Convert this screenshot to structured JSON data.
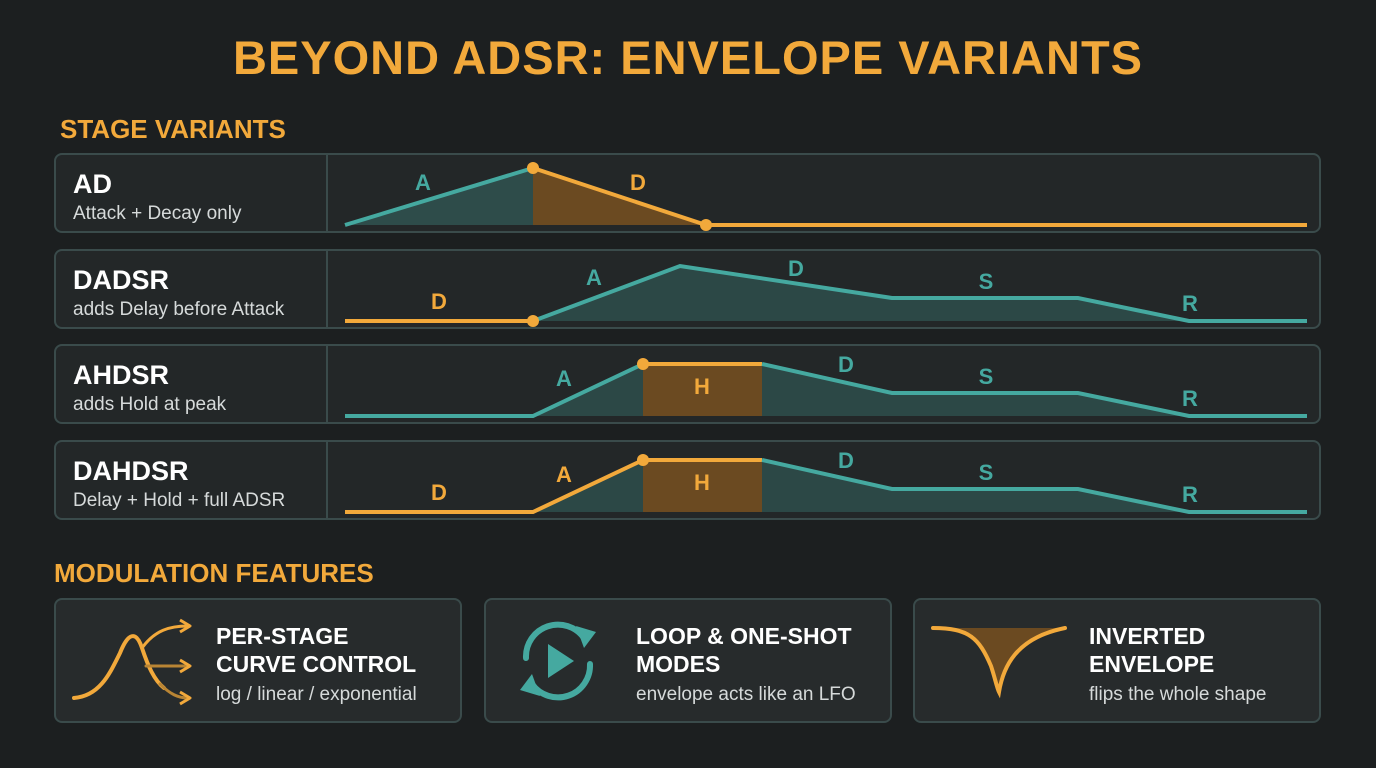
{
  "title": "BEYOND ADSR: ENVELOPE VARIANTS",
  "stage_section": "STAGE VARIANTS",
  "modulation_section": "MODULATION FEATURES",
  "colors": {
    "accent": "#f2a93b",
    "teal": "#45a9a0",
    "background": "#1c1f20"
  },
  "variants": [
    {
      "name": "AD",
      "description": "Attack + Decay only",
      "stages": {
        "a": "A",
        "d": "D"
      }
    },
    {
      "name": "DADSR",
      "description": "adds Delay before Attack",
      "stages": {
        "delay": "D",
        "a": "A",
        "d": "D",
        "s": "S",
        "r": "R"
      }
    },
    {
      "name": "AHDSR",
      "description": "adds Hold at peak",
      "stages": {
        "a": "A",
        "h": "H",
        "d": "D",
        "s": "S",
        "r": "R"
      }
    },
    {
      "name": "DAHDSR",
      "description": "Delay + Hold + full ADSR",
      "stages": {
        "delay": "D",
        "a": "A",
        "h": "H",
        "d": "D",
        "s": "S",
        "r": "R"
      }
    }
  ],
  "features": [
    {
      "title_line1": "PER-STAGE",
      "title_line2": "CURVE CONTROL",
      "description": "log / linear / exponential",
      "icon": "branching-curves-icon"
    },
    {
      "title_line1": "LOOP & ONE-SHOT",
      "title_line2": "MODES",
      "description": "envelope acts like an LFO",
      "icon": "loop-play-icon"
    },
    {
      "title_line1": "INVERTED",
      "title_line2": "ENVELOPE",
      "description": "flips the whole shape",
      "icon": "inverted-curve-icon"
    }
  ]
}
